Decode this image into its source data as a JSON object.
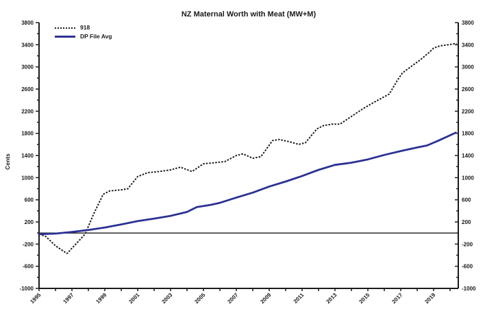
{
  "title": "NZ Maternal Worth with Meat (MW+M)",
  "y_axis_label": "Cents",
  "colors": {
    "axis": "#1a1a1a",
    "series_918": "#1a1a1a",
    "series_dp_file_avg": "#2b3193",
    "background": "#ffffff"
  },
  "chart_data": {
    "type": "line",
    "title": "NZ Maternal Worth with Meat (MW+M)",
    "xlabel": "",
    "ylabel": "Cents",
    "ylim": [
      -1000,
      3800
    ],
    "xlim": [
      1995,
      2020.5
    ],
    "y_tick_minor": 200,
    "y_label_step": 400,
    "y_tick_labels": [
      -1000,
      -600,
      -200,
      200,
      600,
      1000,
      1400,
      1800,
      2200,
      2600,
      3000,
      3400,
      3800
    ],
    "x_tick_labels": [
      "1995",
      "1997",
      "1999",
      "2001",
      "2003",
      "2005",
      "2007",
      "2009",
      "2011",
      "2013",
      "2015",
      "2017",
      "2019"
    ],
    "x_minor_tick_every_year": true,
    "grid": false,
    "zero_line": true,
    "legend_position": "top-left",
    "dual_y_axis": true,
    "series": [
      {
        "name": "918",
        "color": "#1a1a1a",
        "style": "dotted",
        "dash": "2.5 2",
        "width": 2,
        "x": [
          1995.0,
          1995.4,
          1996.0,
          1996.7,
          1997.3,
          1997.8,
          1998.3,
          1998.9,
          1999.3,
          2000.0,
          2000.4,
          2001.0,
          2001.6,
          2002.3,
          2003.0,
          2003.6,
          2004.3,
          2005.0,
          2005.7,
          2006.3,
          2007.0,
          2007.4,
          2008.0,
          2008.5,
          2009.2,
          2009.6,
          2010.2,
          2010.8,
          2011.2,
          2011.9,
          2012.3,
          2012.8,
          2013.3,
          2013.9,
          2014.7,
          2015.4,
          2016.3,
          2016.8,
          2017.1,
          2017.6,
          2018.2,
          2018.8,
          2019.0,
          2019.4,
          2019.9,
          2020.4
        ],
        "y": [
          -20,
          -60,
          -230,
          -370,
          -180,
          -20,
          330,
          700,
          760,
          780,
          800,
          1020,
          1090,
          1110,
          1140,
          1190,
          1110,
          1250,
          1270,
          1290,
          1400,
          1430,
          1350,
          1380,
          1670,
          1690,
          1650,
          1600,
          1630,
          1880,
          1940,
          1965,
          1965,
          2085,
          2245,
          2365,
          2510,
          2760,
          2890,
          3000,
          3130,
          3280,
          3340,
          3380,
          3400,
          3425
        ]
      },
      {
        "name": "DP File Avg",
        "color": "#2b3193",
        "style": "solid",
        "dash": "",
        "width": 2.8,
        "x": [
          1995.0,
          1996.0,
          1997.0,
          1998.0,
          1999.0,
          2000.0,
          2001.0,
          2002.0,
          2003.0,
          2004.0,
          2004.6,
          2005.4,
          2006.0,
          2007.0,
          2008.0,
          2009.0,
          2010.0,
          2011.0,
          2012.0,
          2013.0,
          2014.0,
          2015.0,
          2016.0,
          2017.0,
          2018.0,
          2018.6,
          2019.3,
          2020.4
        ],
        "y": [
          -20,
          -10,
          20,
          55,
          100,
          155,
          215,
          260,
          310,
          380,
          470,
          505,
          545,
          640,
          730,
          840,
          930,
          1030,
          1140,
          1230,
          1270,
          1330,
          1410,
          1480,
          1545,
          1580,
          1670,
          1820
        ]
      }
    ]
  }
}
